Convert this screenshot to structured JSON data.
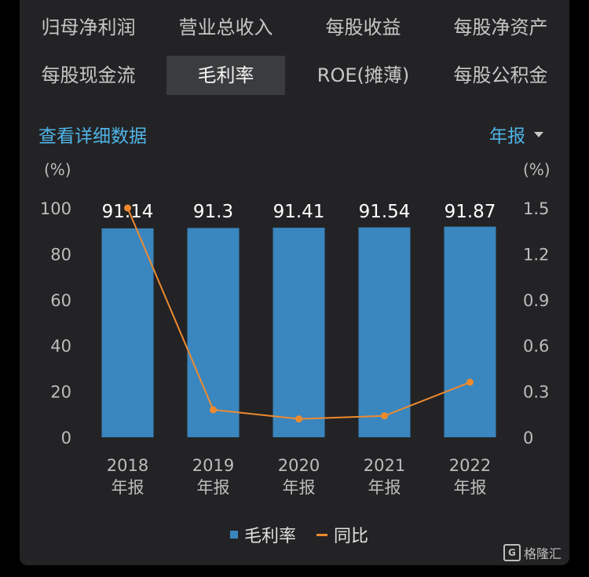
{
  "tabs_row1": [
    "归母净利润",
    "营业总收入",
    "每股收益",
    "每股净资产"
  ],
  "tabs_row2": [
    "每股现金流",
    "毛利率",
    "ROE(摊薄)",
    "每股公积金"
  ],
  "active_tab": "毛利率",
  "detail_link": "查看详细数据",
  "period_select": {
    "label": "年报",
    "icon": "triangle-down-icon"
  },
  "left_unit": "(%)",
  "right_unit": "(%)",
  "colors": {
    "bar": "#3a86be",
    "line": "#ee8a2e",
    "accent": "#4fb3e6"
  },
  "chart_data": {
    "type": "bar",
    "categories": [
      [
        "2018",
        "年报"
      ],
      [
        "2019",
        "年报"
      ],
      [
        "2020",
        "年报"
      ],
      [
        "2021",
        "年报"
      ],
      [
        "2022",
        "年报"
      ]
    ],
    "series": [
      {
        "name": "毛利率",
        "type": "bar",
        "axis": "left",
        "values": [
          91.14,
          91.3,
          91.41,
          91.54,
          91.87
        ],
        "labels": [
          "91.14",
          "91.3",
          "91.41",
          "91.54",
          "91.87"
        ]
      },
      {
        "name": "同比",
        "type": "line",
        "axis": "right",
        "values": [
          1.5,
          0.18,
          0.12,
          0.14,
          0.36
        ]
      }
    ],
    "y_left": {
      "min": 0,
      "max": 100,
      "ticks": [
        "0",
        "20",
        "40",
        "60",
        "80",
        "100"
      ]
    },
    "y_right": {
      "min": 0,
      "max": 1.5,
      "ticks": [
        "0",
        "0.3",
        "0.6",
        "0.9",
        "1.2",
        "1.5"
      ]
    },
    "legend": [
      "毛利率",
      "同比"
    ],
    "legend_position": "bottom"
  },
  "watermark": {
    "logo": "G",
    "text": "格隆汇"
  }
}
